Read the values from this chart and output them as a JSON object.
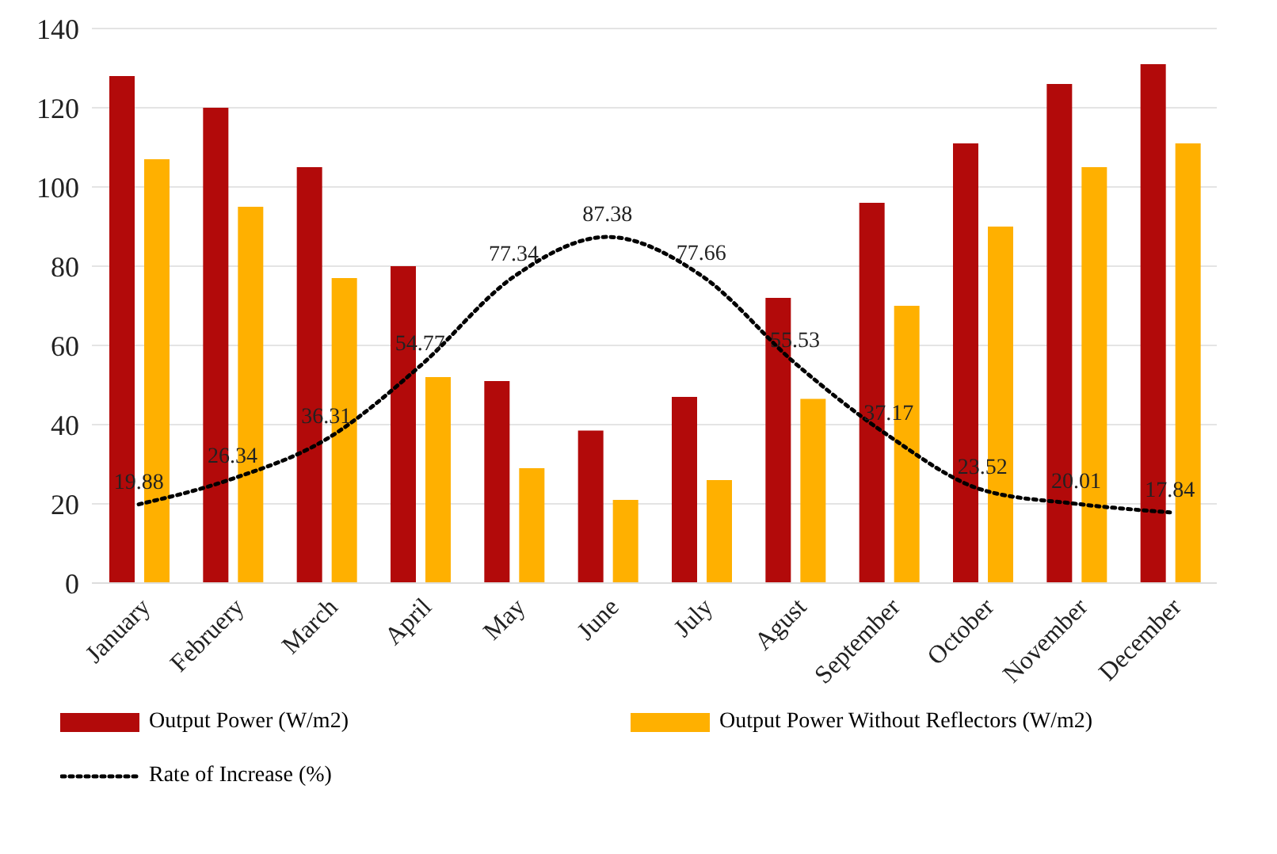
{
  "chart_data": {
    "type": "bar",
    "categories": [
      "January",
      "Februery",
      "March",
      "April",
      "May",
      "June",
      "July",
      "Agust",
      "September",
      "October",
      "November",
      "December"
    ],
    "series": [
      {
        "name": "Output Power (W/m2)",
        "color": "#b20a0a",
        "values": [
          128,
          120,
          105,
          80,
          51,
          38.5,
          47,
          72,
          96,
          111,
          126,
          131
        ]
      },
      {
        "name": "Output Power Without Reflectors (W/m2)",
        "color": "#ffb000",
        "values": [
          107,
          95,
          77,
          52,
          29,
          21,
          26,
          46.5,
          70,
          90,
          105,
          111
        ]
      },
      {
        "name": "Rate of Increase (%)",
        "type": "line",
        "color": "#000000",
        "line_style": "dotted",
        "marker": "none",
        "data_labels": true,
        "values": [
          19.88,
          26.34,
          36.31,
          54.77,
          77.34,
          87.38,
          77.66,
          55.53,
          37.17,
          23.52,
          20.01,
          17.84
        ]
      }
    ],
    "ylim": [
      0,
      140
    ],
    "yticks": [
      0,
      20,
      40,
      60,
      80,
      100,
      120,
      140
    ],
    "grid": "y",
    "legend": "bottom"
  }
}
